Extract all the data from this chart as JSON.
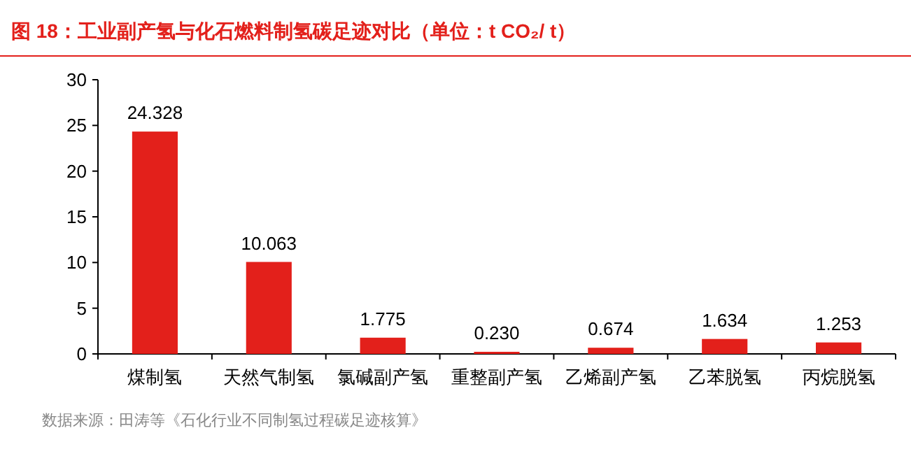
{
  "chart_data": {
    "type": "bar",
    "title": "图 18：工业副产氢与化石燃料制氢碳足迹对比（单位：t CO₂/ t）",
    "categories": [
      "煤制氢",
      "天然气制氢",
      "氯碱副产氢",
      "重整副产氢",
      "乙烯副产氢",
      "乙苯脱氢",
      "丙烷脱氢"
    ],
    "values": [
      24.328,
      10.063,
      1.775,
      0.23,
      0.674,
      1.634,
      1.253
    ],
    "value_labels": [
      "24.328",
      "10.063",
      "1.775",
      "0.230",
      "0.674",
      "1.634",
      "1.253"
    ],
    "color": "#e3201b",
    "ylim": [
      0,
      30
    ],
    "yticks": [
      0,
      5,
      10,
      15,
      20,
      25,
      30
    ],
    "grid": false,
    "annotations": [
      "数据来源：田涛等《石化行业不同制氢过程碳足迹核算》"
    ]
  }
}
